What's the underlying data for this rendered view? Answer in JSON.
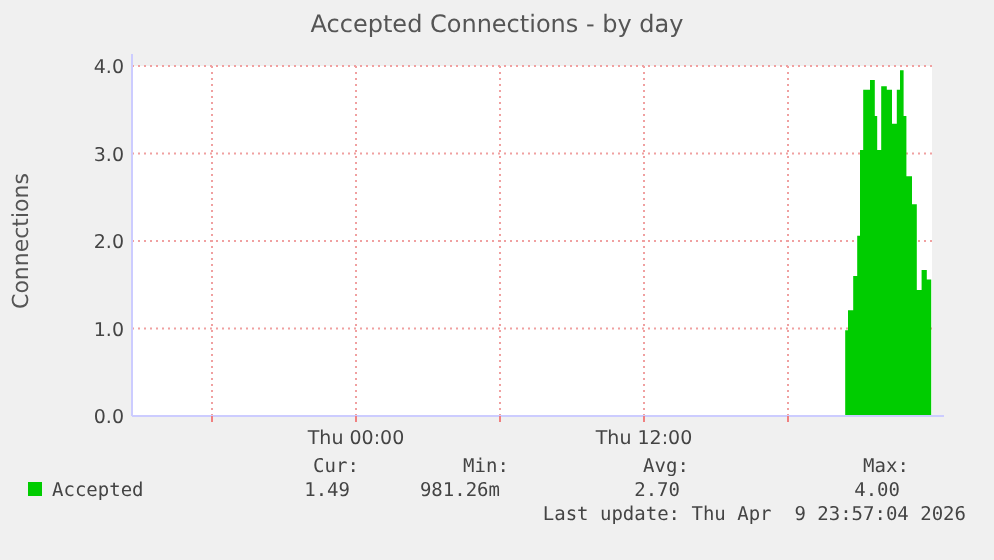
{
  "chart_data": {
    "type": "area",
    "title": "Accepted Connections - by day",
    "ylabel": "Connections",
    "x": [
      "2026-04-09T20:23",
      "2026-04-09T20:30",
      "2026-04-09T20:43",
      "2026-04-09T20:53",
      "2026-04-09T21:00",
      "2026-04-09T21:08",
      "2026-04-09T21:25",
      "2026-04-09T21:37",
      "2026-04-09T21:43",
      "2026-04-09T21:53",
      "2026-04-09T22:07",
      "2026-04-09T22:20",
      "2026-04-09T22:32",
      "2026-04-09T22:40",
      "2026-04-09T22:49",
      "2026-04-09T22:56",
      "2026-04-09T23:10",
      "2026-04-09T23:22",
      "2026-04-09T23:34",
      "2026-04-09T23:47",
      "2026-04-09T23:58"
    ],
    "series": [
      {
        "name": "Accepted",
        "color": "#00cc00",
        "values": [
          0.98,
          1.21,
          1.6,
          2.06,
          3.04,
          3.73,
          3.84,
          3.43,
          3.04,
          3.77,
          3.73,
          3.34,
          3.73,
          3.95,
          3.43,
          2.74,
          2.42,
          1.44,
          1.67,
          1.56,
          1.49
        ]
      }
    ],
    "xlim": [
      "2026-04-08T14:40",
      "2026-04-10T00:00"
    ],
    "xticks": [
      {
        "value": "2026-04-08T18:00",
        "label": null
      },
      {
        "value": "2026-04-09T00:00",
        "label": "Thu 00:00"
      },
      {
        "value": "2026-04-09T06:00",
        "label": null
      },
      {
        "value": "2026-04-09T12:00",
        "label": "Thu 12:00"
      },
      {
        "value": "2026-04-09T18:00",
        "label": null
      }
    ],
    "ylim": [
      0,
      4
    ],
    "yticks": [
      {
        "value": 0,
        "label": "0.0"
      },
      {
        "value": 1,
        "label": "1.0"
      },
      {
        "value": 2,
        "label": "2.0"
      },
      {
        "value": 3,
        "label": "3.0"
      },
      {
        "value": 4,
        "label": "4.0"
      }
    ],
    "grid": true,
    "legend": "bottom",
    "annotations": [
      "Cur:",
      "Min:",
      "Avg:",
      "Max:",
      "1.49",
      "981.26m",
      "2.70",
      "4.00",
      "Last update: Thu Apr  9 23:57:04 2026"
    ]
  }
}
